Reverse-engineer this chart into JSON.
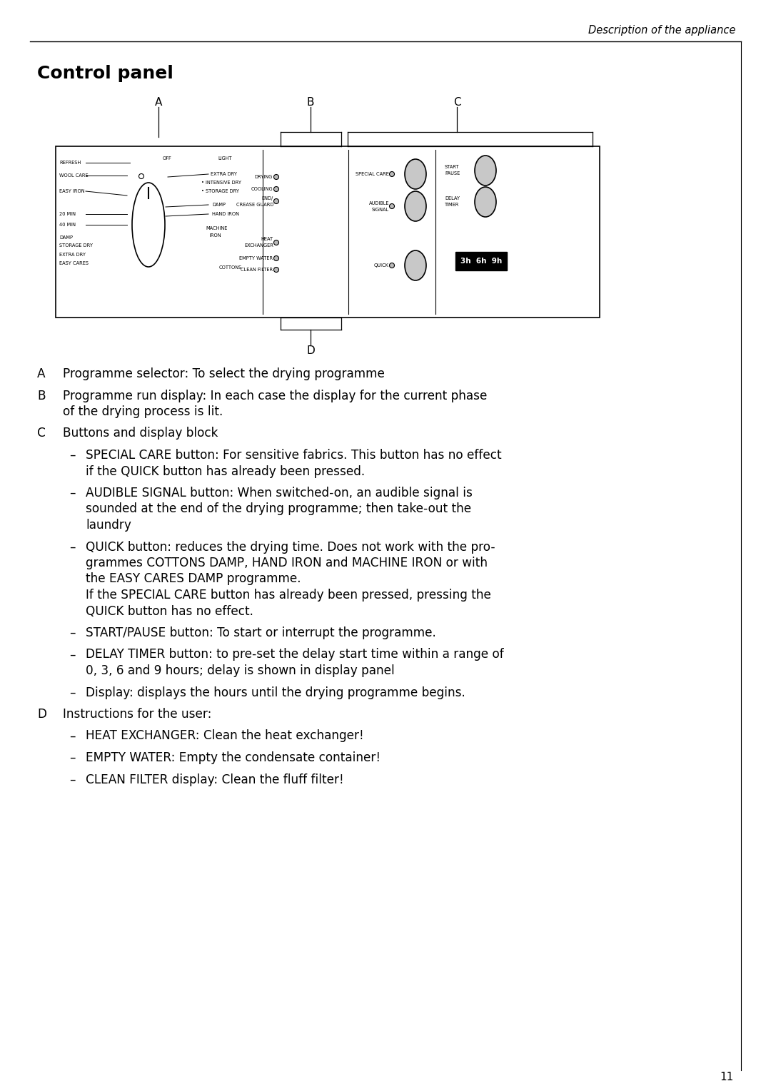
{
  "page_title": "Description of the appliance",
  "section_title": "Control panel",
  "bg_color": "#ffffff",
  "page_number": "11",
  "body_items": [
    {
      "type": "label",
      "label": "A",
      "text": "Programme selector: To select the drying programme"
    },
    {
      "type": "label",
      "label": "B",
      "text": "Programme run display: In each case the display for the current phase\nof the drying process is lit."
    },
    {
      "type": "label",
      "label": "C",
      "text": "Buttons and display block"
    },
    {
      "type": "bullet",
      "text": "SPECIAL CARE button: For sensitive fabrics. This button has no effect\nif the QUICK button has already been pressed."
    },
    {
      "type": "bullet",
      "text": "AUDIBLE SIGNAL button: When switched-on, an audible signal is\nsounded at the end of the drying programme; then take-out the\nlaundry"
    },
    {
      "type": "bullet",
      "text": "QUICK button: reduces the drying time. Does not work with the pro-\ngrammes COTTONS DAMP, HAND IRON and MACHINE IRON or with\nthe EASY CARES DAMP programme.\nIf the SPECIAL CARE button has already been pressed, pressing the\nQUICK button has no effect."
    },
    {
      "type": "bullet",
      "text": "START/PAUSE button: To start or interrupt the programme."
    },
    {
      "type": "bullet",
      "text": "DELAY TIMER button: to pre-set the delay start time within a range of\n0, 3, 6 and 9 hours; delay is shown in display panel"
    },
    {
      "type": "bullet",
      "text": "Display: displays the hours until the drying programme begins."
    },
    {
      "type": "label",
      "label": "D",
      "text": "Instructions for the user:"
    },
    {
      "type": "bullet",
      "text": "HEAT EXCHANGER: Clean the heat exchanger!"
    },
    {
      "type": "bullet",
      "text": "EMPTY WATER: Empty the condensate container!"
    },
    {
      "type": "bullet",
      "text": "CLEAN FILTER display: Clean the fluff filter!"
    }
  ]
}
